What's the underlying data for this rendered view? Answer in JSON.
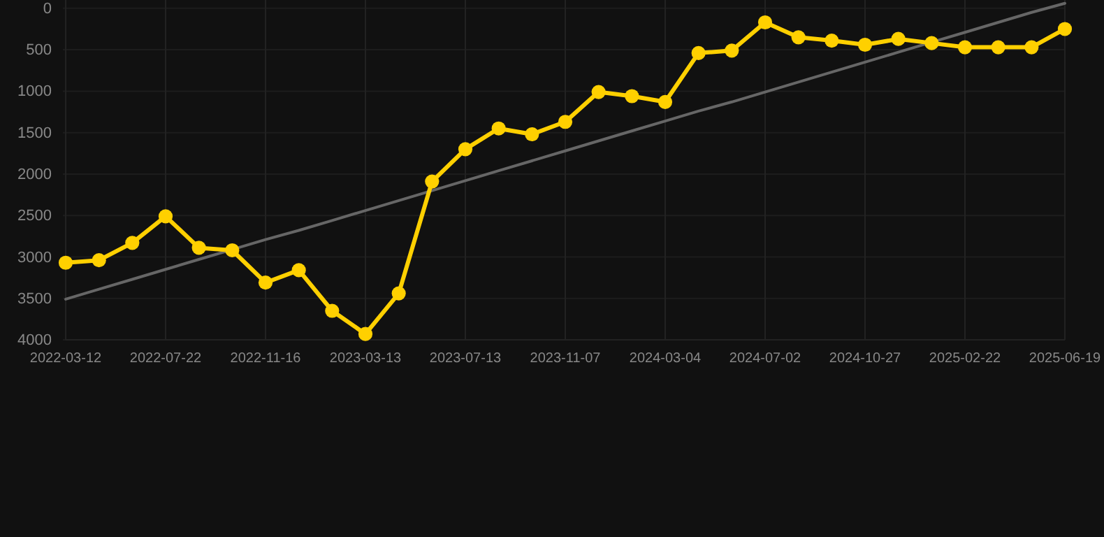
{
  "chart_data": {
    "type": "line",
    "categories": [
      "2022-03-12",
      null,
      null,
      "2022-07-22",
      null,
      null,
      "2022-11-16",
      null,
      null,
      "2023-03-13",
      null,
      null,
      "2023-07-13",
      null,
      null,
      "2023-11-07",
      null,
      null,
      "2024-03-04",
      null,
      null,
      "2024-07-02",
      null,
      null,
      "2024-10-27",
      null,
      null,
      "2025-02-22",
      null,
      null,
      "2025-06-19"
    ],
    "series": [
      {
        "color": "#ffd000",
        "values": [
          3070,
          3040,
          2830,
          2510,
          2890,
          2920,
          3310,
          3160,
          3650,
          3930,
          3440,
          2090,
          1700,
          1450,
          1520,
          1370,
          1010,
          1060,
          1130,
          540,
          510,
          170,
          350,
          390,
          440,
          370,
          420,
          470,
          470,
          470,
          250
        ]
      },
      {
        "type": "line",
        "color": "#666666",
        "values": [
          3510,
          3390,
          3270,
          3150,
          3030,
          2910,
          2790,
          2680,
          2560,
          2440,
          2320,
          2200,
          2080,
          1960,
          1840,
          1720,
          1600,
          1480,
          1360,
          1240,
          1130,
          1010,
          890,
          770,
          650,
          530,
          410,
          290,
          170,
          50,
          -60
        ],
        "marker": "none"
      }
    ],
    "ylim": [
      4000,
      -100
    ],
    "yticks": [
      0,
      500,
      1000,
      1500,
      2000,
      2500,
      3000,
      3500,
      4000
    ],
    "grid": true,
    "marker": "circle",
    "line_style": "solid"
  }
}
